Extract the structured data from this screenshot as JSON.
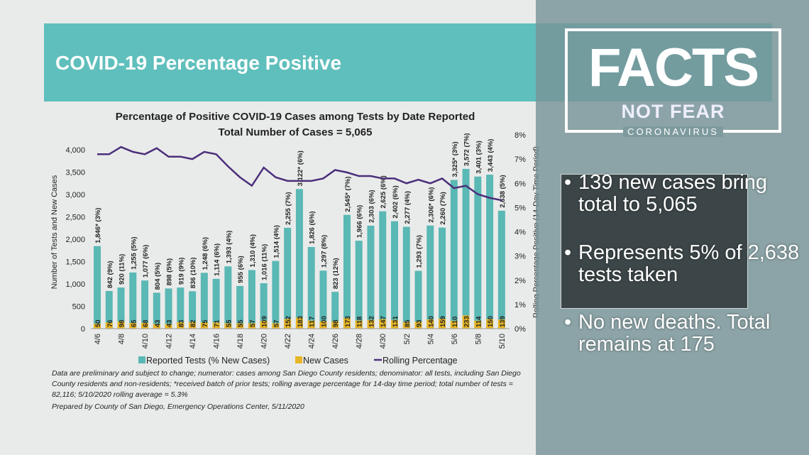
{
  "slide": {
    "banner_title": "COVID-19 Percentage Positive"
  },
  "chart_data": {
    "type": "bar+line",
    "title": "Percentage of Positive COVID-19 Cases among Tests by Date Reported",
    "subtitle": "Total Number of Cases = 5,065",
    "ylabel": "Number of Tests and New Cases",
    "y2label": "Rolling Percentage Positive (14-Day Time Period)",
    "ylim": [
      0,
      4000
    ],
    "y_ticks": [
      "0",
      "500",
      "1,000",
      "1,500",
      "2,000",
      "2,500",
      "3,000",
      "3,500",
      "4,000"
    ],
    "y2lim": [
      0,
      8
    ],
    "y2_ticks": [
      "0%",
      "1%",
      "2%",
      "3%",
      "4%",
      "5%",
      "6%",
      "7%",
      "8%"
    ],
    "categories": [
      "4/6",
      "4/7",
      "4/8",
      "4/9",
      "4/10",
      "4/11",
      "4/12",
      "4/13",
      "4/14",
      "4/15",
      "4/16",
      "4/17",
      "4/18",
      "4/19",
      "4/20",
      "4/21",
      "4/22",
      "4/23",
      "4/24",
      "4/25",
      "4/26",
      "4/27",
      "4/28",
      "4/29",
      "4/30",
      "5/1",
      "5/2",
      "5/3",
      "5/4",
      "5/5",
      "5/6",
      "5/7",
      "5/8",
      "5/9",
      "5/10"
    ],
    "x_tick_labels": [
      "4/6",
      "4/8",
      "4/10",
      "4/12",
      "4/14",
      "4/16",
      "4/18",
      "4/20",
      "4/22",
      "4/24",
      "4/26",
      "4/28",
      "4/30",
      "5/2",
      "5/4",
      "5/6",
      "5/8",
      "5/10"
    ],
    "series": [
      {
        "name": "Reported Tests (% New Cases)",
        "type": "bar",
        "color": "#5ab8b5",
        "values": [
          1846,
          842,
          920,
          1255,
          1077,
          804,
          898,
          919,
          836,
          1248,
          1114,
          1393,
          955,
          1310,
          1016,
          1514,
          2255,
          3122,
          1826,
          1297,
          823,
          2545,
          1966,
          2303,
          2625,
          2402,
          2277,
          1293,
          2306,
          2260,
          3325,
          3572,
          3401,
          3443,
          2638
        ],
        "labels": [
          "1,846* (3%)",
          "842 (9%)",
          "920 (11%)",
          "1,255 (5%)",
          "1,077 (6%)",
          "804 (5%)",
          "898 (5%)",
          "919 (9%)",
          "836 (10%)",
          "1,248 (6%)",
          "1,114 (6%)",
          "1,393 (4%)",
          "955 (6%)",
          "1,310 (4%)",
          "1,016 (11%)",
          "1,514 (4%)",
          "2,255 (7%)",
          "3,122* (6%)",
          "1,826 (6%)",
          "1,297 (8%)",
          "823 (12%)",
          "2,545* (7%)",
          "1,966 (6%)",
          "2,303 (6%)",
          "2,625 (6%)",
          "2,402 (6%)",
          "2,277 (4%)",
          "1,293 (7%)",
          "2,306* (6%)",
          "2,260 (7%)",
          "3,325* (3%)",
          "3,572 (7%)",
          "3,401 (3%)",
          "3,443 (4%)",
          "2,638 (5%)"
        ]
      },
      {
        "name": "New Cases",
        "type": "bar",
        "color": "#e8b625",
        "values": [
          50,
          76,
          98,
          65,
          68,
          43,
          43,
          83,
          82,
          75,
          71,
          55,
          55,
          57,
          109,
          57,
          152,
          183,
          117,
          100,
          98,
          173,
          118,
          132,
          147,
          131,
          85,
          93,
          140,
          159,
          110,
          233,
          114,
          150,
          139
        ]
      },
      {
        "name": "Rolling Percentage",
        "type": "line",
        "axis": "right",
        "color": "#4b2f7a",
        "values": [
          7.2,
          7.2,
          7.5,
          7.3,
          7.2,
          7.45,
          7.1,
          7.1,
          7.0,
          7.3,
          7.2,
          6.7,
          6.25,
          5.9,
          6.65,
          6.25,
          6.1,
          6.1,
          6.1,
          6.2,
          6.55,
          6.45,
          6.3,
          6.3,
          6.2,
          6.2,
          6.0,
          6.15,
          6.0,
          6.2,
          5.8,
          5.9,
          5.55,
          5.4,
          5.3
        ]
      }
    ],
    "legend": "bottom",
    "footnotes": [
      "Data are preliminary and subject to change; numerator: cases among San Diego County residents; denominator: all tests, including San Diego County residents and non-residents; *received batch of prior tests; rolling average percentage for 14-day time period; total number of tests = 82,116; 5/10/2020 rolling average = 5.3%",
      "Prepared by County of San Diego, Emergency Operations Center, 5/11/2020"
    ]
  },
  "overlay": {
    "logo": {
      "facts": "FACTS",
      "not_fear": "NOT FEAR",
      "coronavirus": "CORONAVIRUS"
    },
    "bullet_char": "•",
    "bullets": [
      "139 new cases bring total to 5,065",
      "Represents 5% of 2,638 tests taken",
      "No new deaths. Total remains at 175"
    ]
  }
}
